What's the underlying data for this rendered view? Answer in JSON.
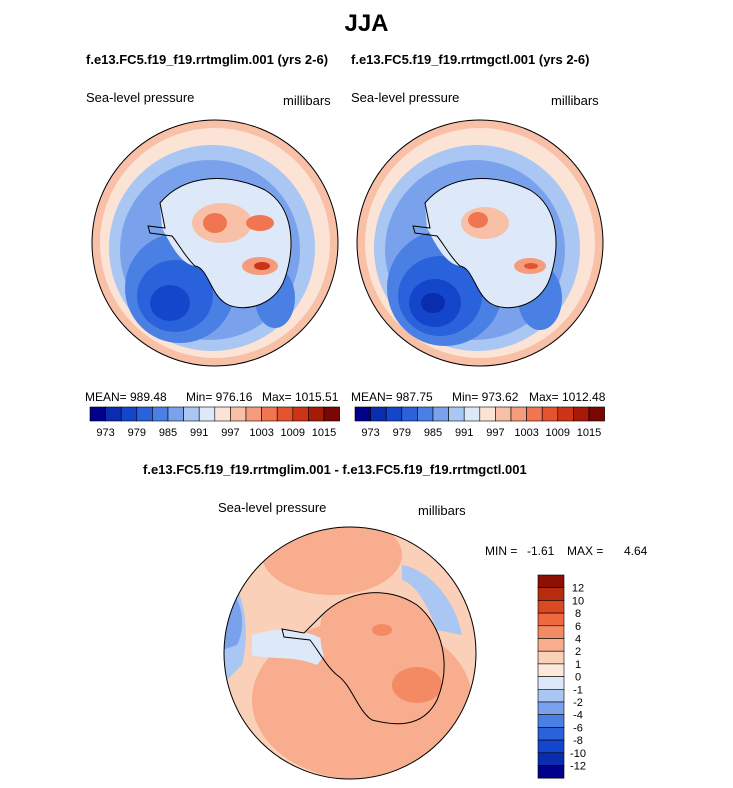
{
  "season": "JJA",
  "panel_left": {
    "title": "f.e13.FC5.f19_f19.rrtmglim.001 (yrs 2-6)",
    "variable": "Sea-level pressure",
    "units": "millibars",
    "mean": "MEAN= 989.48",
    "min": "Min= 976.16",
    "max": "Max= 1015.51"
  },
  "panel_right": {
    "title": "f.e13.FC5.f19_f19.rrtmgctl.001 (yrs 2-6)",
    "variable": "Sea-level pressure",
    "units": "millibars",
    "mean": "MEAN= 987.75",
    "min": "Min= 973.62",
    "max": "Max= 1012.48"
  },
  "panel_diff": {
    "title": "f.e13.FC5.f19_f19.rrtmglim.001 - f.e13.FC5.f19_f19.rrtmgctl.001",
    "variable": "Sea-level pressure",
    "units": "millibars",
    "min_label": "MIN =",
    "min_value": "-1.61",
    "max_label": "MAX =",
    "max_value": "4.64"
  },
  "colorbar_abs": {
    "colors": [
      "#00008b",
      "#0a2db0",
      "#1446cc",
      "#2a62dc",
      "#4a80e4",
      "#7aa2ec",
      "#a9c7f2",
      "#dde9f8",
      "#fbe3d6",
      "#f8c0a6",
      "#f59c7c",
      "#ef7650",
      "#e4522e",
      "#cd3416",
      "#a51b0a",
      "#7a0703"
    ],
    "ticks": [
      "973",
      "979",
      "985",
      "991",
      "997",
      "1003",
      "1009",
      "1015"
    ]
  },
  "colorbar_diff": {
    "colors": [
      "#00008b",
      "#0a2db0",
      "#1446cc",
      "#2a62dc",
      "#4a80e4",
      "#7aa2ec",
      "#a9c7f2",
      "#dde9f8",
      "#fde8dc",
      "#fbd0b8",
      "#f8ad8e",
      "#f48a64",
      "#ee6840",
      "#dc4822",
      "#b82c0e",
      "#8e0f04"
    ],
    "ticks": [
      "12",
      "10",
      "8",
      "6",
      "4",
      "2",
      "1",
      "0",
      "-1",
      "-2",
      "-4",
      "-6",
      "-8",
      "-10",
      "-12"
    ]
  }
}
